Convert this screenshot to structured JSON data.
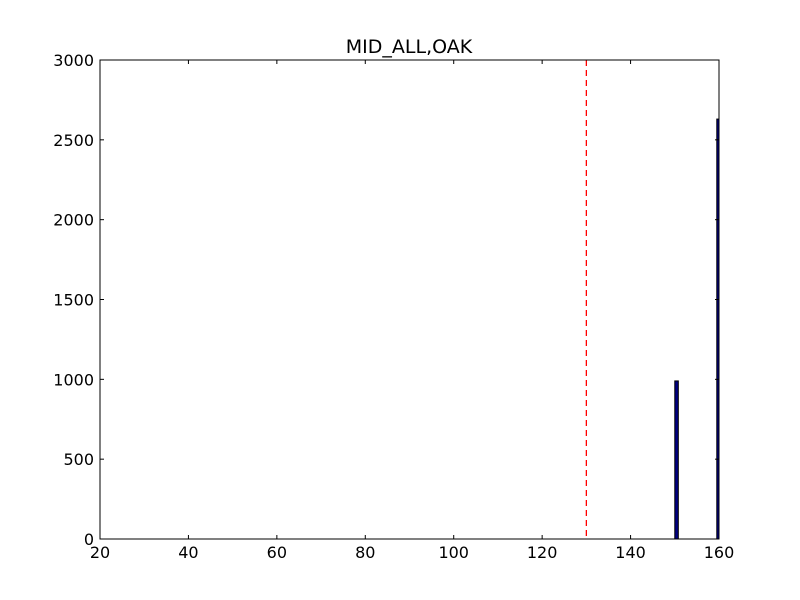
{
  "chart_data": {
    "type": "bar",
    "title": "MID_ALL,OAK",
    "xlabel": "",
    "ylabel": "",
    "xlim": [
      20,
      160
    ],
    "ylim": [
      0,
      3000
    ],
    "x_ticks": [
      20,
      40,
      60,
      80,
      100,
      120,
      140,
      160
    ],
    "y_ticks": [
      0,
      500,
      1000,
      1500,
      2000,
      2500,
      3000
    ],
    "bars": [
      {
        "x_start": 150.0,
        "x_end": 150.8,
        "value": 990
      },
      {
        "x_start": 159.5,
        "x_end": 160.0,
        "value": 2630
      }
    ],
    "reference_line": {
      "x": 130,
      "style": "dashed",
      "color": "#ff0000"
    },
    "bar_color": "#000080",
    "grid": false,
    "legend": "none"
  }
}
